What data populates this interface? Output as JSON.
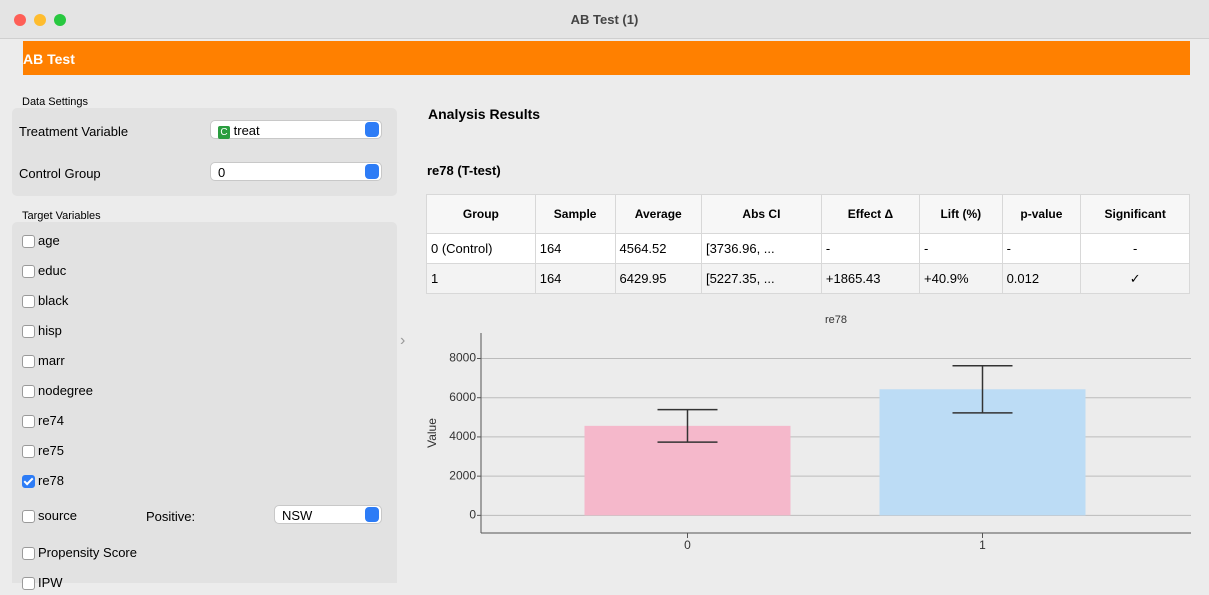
{
  "window_title": "AB Test (1)",
  "header": {
    "title": "AB Test"
  },
  "data_settings": {
    "label": "Data Settings",
    "treatment_variable": {
      "label": "Treatment Variable",
      "badge": "C",
      "value": "treat"
    },
    "control_group": {
      "label": "Control Group",
      "value": "0"
    }
  },
  "target_variables": {
    "label": "Target Variables",
    "items": [
      {
        "name": "age",
        "checked": false
      },
      {
        "name": "educ",
        "checked": false
      },
      {
        "name": "black",
        "checked": false
      },
      {
        "name": "hisp",
        "checked": false
      },
      {
        "name": "marr",
        "checked": false
      },
      {
        "name": "nodegree",
        "checked": false
      },
      {
        "name": "re74",
        "checked": false
      },
      {
        "name": "re75",
        "checked": false
      },
      {
        "name": "re78",
        "checked": true
      },
      {
        "name": "source",
        "checked": false
      }
    ],
    "positive": {
      "label": "Positive:",
      "value": "NSW"
    },
    "extra": [
      {
        "name": "Propensity Score",
        "checked": false
      },
      {
        "name": "IPW",
        "checked": false
      }
    ]
  },
  "results": {
    "title": "Analysis Results",
    "test_title": "re78 (T-test)",
    "table": {
      "columns": [
        "Group",
        "Sample",
        "Average",
        "Abs CI",
        "Effect Δ",
        "Lift (%)",
        "p-value",
        "Significant"
      ],
      "rows": [
        [
          "0 (Control)",
          "164",
          "4564.52",
          "[3736.96, ...",
          "-",
          "-",
          "-",
          "-"
        ],
        [
          "1",
          "164",
          "6429.95",
          "[5227.35, ...",
          "+1865.43",
          "+40.9%",
          "0.012",
          "✓"
        ]
      ]
    }
  },
  "chart_data": {
    "type": "bar",
    "title": "re78",
    "y_label": "Value",
    "categories": [
      "0",
      "1"
    ],
    "values": [
      4564.52,
      6429.95
    ],
    "ci_low": [
      3736.96,
      5227.35
    ],
    "ci_high": [
      5392.08,
      7632.55
    ],
    "colors": [
      "#f5b8cb",
      "#bcdcf5"
    ],
    "ylim": [
      -900,
      9300
    ],
    "yticks": [
      0,
      2000,
      4000,
      6000,
      8000
    ],
    "grid": true
  }
}
